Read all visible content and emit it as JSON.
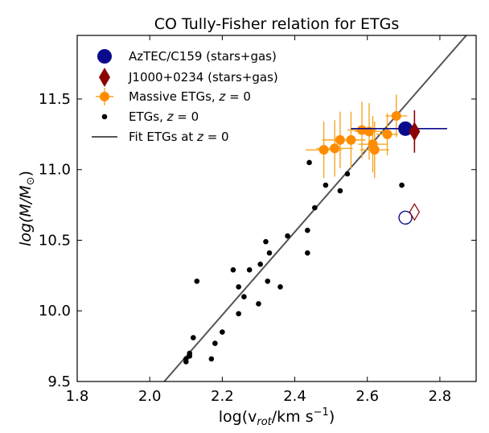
{
  "chart_data": {
    "type": "scatter",
    "title": "CO Tully-Fisher relation for ETGs",
    "xlabel_parts": {
      "main": "log(v",
      "sub": "rot",
      "mid": "/km s",
      "sup": "−1",
      "end": ")"
    },
    "ylabel_parts": {
      "main": "log(M/M",
      "sub": "⊙",
      "end": ")"
    },
    "xlim": [
      1.8,
      2.9
    ],
    "ylim": [
      9.5,
      11.95
    ],
    "xticks": [
      1.8,
      2.0,
      2.2,
      2.4,
      2.6,
      2.8
    ],
    "xtick_labels": [
      "1.8",
      "2.0",
      "2.2",
      "2.4",
      "2.6",
      "2.8"
    ],
    "yticks": [
      9.5,
      10.0,
      10.5,
      11.0,
      11.5
    ],
    "ytick_labels": [
      "9.5",
      "10.0",
      "10.5",
      "11.0",
      "11.5"
    ],
    "legend_position": "top-left",
    "colors": {
      "azt": "#0a0a8c",
      "j1000": "#8b0000",
      "massive": "#ff8c00",
      "massive_err": "#f5a623",
      "etg": "#000000",
      "fit": "#555555"
    },
    "series": [
      {
        "name": "AzTEC/C159 (stars+gas)",
        "marker": "circle",
        "points": [
          {
            "x": 2.705,
            "y": 11.29,
            "xerr": [
              0.15,
              0.115
            ],
            "yerr": [
              0.05,
              0.03
            ]
          }
        ],
        "open_points": [
          {
            "x": 2.705,
            "y": 10.66
          }
        ]
      },
      {
        "name": "J1000+0234 (stars+gas)",
        "marker": "diamond",
        "points": [
          {
            "x": 2.73,
            "y": 11.27,
            "xerr": [
              0,
              0
            ],
            "yerr": [
              0.15,
              0.15
            ]
          }
        ],
        "open_points": [
          {
            "x": 2.73,
            "y": 10.7
          }
        ]
      },
      {
        "name": "Massive ETGs, z = 0",
        "marker": "circle-errorbar",
        "points": [
          {
            "x": 2.48,
            "y": 11.14,
            "xerr": [
              0.05,
              0.05
            ],
            "yerr": [
              0.2,
              0.2
            ]
          },
          {
            "x": 2.51,
            "y": 11.15,
            "xerr": [
              0.05,
              0.05
            ],
            "yerr": [
              0.2,
              0.2
            ]
          },
          {
            "x": 2.525,
            "y": 11.21,
            "xerr": [
              0.05,
              0.05
            ],
            "yerr": [
              0.2,
              0.2
            ]
          },
          {
            "x": 2.555,
            "y": 11.21,
            "xerr": [
              0.04,
              0.04
            ],
            "yerr": [
              0.2,
              0.2
            ]
          },
          {
            "x": 2.585,
            "y": 11.28,
            "xerr": [
              0.04,
              0.04
            ],
            "yerr": [
              0.2,
              0.2
            ]
          },
          {
            "x": 2.605,
            "y": 11.27,
            "xerr": [
              0.04,
              0.04
            ],
            "yerr": [
              0.2,
              0.2
            ]
          },
          {
            "x": 2.615,
            "y": 11.18,
            "xerr": [
              0.04,
              0.04
            ],
            "yerr": [
              0.2,
              0.2
            ]
          },
          {
            "x": 2.62,
            "y": 11.14,
            "xerr": [
              0.04,
              0.04
            ],
            "yerr": [
              0.2,
              0.2
            ]
          },
          {
            "x": 2.655,
            "y": 11.25,
            "xerr": [
              0.03,
              0.03
            ],
            "yerr": [
              0.15,
              0.15
            ]
          },
          {
            "x": 2.68,
            "y": 11.38,
            "xerr": [
              0.03,
              0.03
            ],
            "yerr": [
              0.15,
              0.15
            ]
          }
        ]
      },
      {
        "name": "ETGs, z = 0",
        "marker": "dot",
        "points": [
          {
            "x": 2.1,
            "y": 9.64
          },
          {
            "x": 2.1,
            "y": 9.66
          },
          {
            "x": 2.11,
            "y": 9.68
          },
          {
            "x": 2.11,
            "y": 9.7
          },
          {
            "x": 2.12,
            "y": 9.81
          },
          {
            "x": 2.13,
            "y": 10.21
          },
          {
            "x": 2.17,
            "y": 9.66
          },
          {
            "x": 2.18,
            "y": 9.77
          },
          {
            "x": 2.2,
            "y": 9.85
          },
          {
            "x": 2.23,
            "y": 10.29
          },
          {
            "x": 2.245,
            "y": 10.17
          },
          {
            "x": 2.245,
            "y": 9.98
          },
          {
            "x": 2.26,
            "y": 10.1
          },
          {
            "x": 2.275,
            "y": 10.29
          },
          {
            "x": 2.3,
            "y": 10.05
          },
          {
            "x": 2.305,
            "y": 10.33
          },
          {
            "x": 2.32,
            "y": 10.49
          },
          {
            "x": 2.325,
            "y": 10.21
          },
          {
            "x": 2.33,
            "y": 10.41
          },
          {
            "x": 2.36,
            "y": 10.17
          },
          {
            "x": 2.38,
            "y": 10.53
          },
          {
            "x": 2.435,
            "y": 10.41
          },
          {
            "x": 2.435,
            "y": 10.57
          },
          {
            "x": 2.44,
            "y": 11.05
          },
          {
            "x": 2.455,
            "y": 10.73
          },
          {
            "x": 2.485,
            "y": 10.89
          },
          {
            "x": 2.525,
            "y": 10.85
          },
          {
            "x": 2.545,
            "y": 10.97
          },
          {
            "x": 2.695,
            "y": 10.89
          }
        ]
      },
      {
        "name": "Fit ETGs at z = 0",
        "marker": "line",
        "line": {
          "x": [
            2.04,
            2.9
          ],
          "y": [
            9.5,
            12.03
          ]
        }
      }
    ],
    "legend_labels": [
      {
        "text": "AzTEC/C159 (stars+gas)"
      },
      {
        "text": "J1000+0234 (stars+gas)"
      },
      {
        "pre": "Massive ETGs, ",
        "italic": "z",
        "post": " = 0"
      },
      {
        "pre": "ETGs, ",
        "italic": "z",
        "post": " = 0"
      },
      {
        "pre": "Fit ETGs at ",
        "italic": "z",
        "post": " = 0"
      }
    ]
  }
}
